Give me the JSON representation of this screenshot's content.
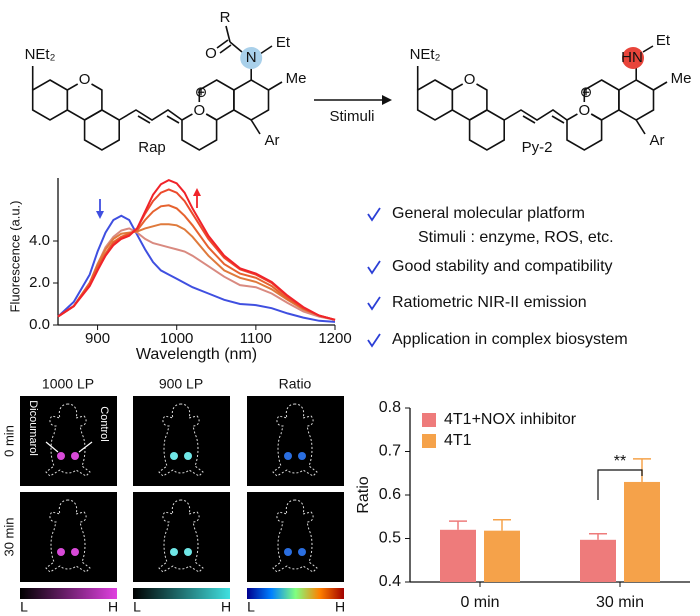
{
  "scheme": {
    "reagent": "Stimuli",
    "reactant": {
      "name": "Rap",
      "amine": "NEt₂",
      "ring_o": "O",
      "cation_o": "O",
      "charge": "⊕",
      "acyl": "R",
      "carbonyl_o": "O",
      "nitrogen": "N",
      "ethyl": "Et",
      "methyl": "Me",
      "aryl": "Ar"
    },
    "product": {
      "name": "Py-2",
      "amine": "NEt₂",
      "ring_o": "O",
      "cation_o": "O",
      "charge": "⊕",
      "nitrogen": "HN",
      "ethyl": "Et",
      "methyl": "Me",
      "aryl": "Ar"
    }
  },
  "features": [
    {
      "lines": [
        "General molecular platform",
        "Stimuli : enzyme, ROS, etc."
      ]
    },
    {
      "lines": [
        "Good stability and compatibility"
      ]
    },
    {
      "lines": [
        "Ratiometric NIR-II emission"
      ]
    },
    {
      "lines": [
        "Application in complex biosystem"
      ]
    }
  ],
  "imaging": {
    "columns": [
      "1000 LP",
      "900 LP",
      "Ratio"
    ],
    "rows": [
      "0 min",
      "30 min"
    ],
    "labels": [
      "Dicoumarol",
      "Control"
    ],
    "scale": {
      "low": "L",
      "high": "H"
    }
  },
  "chart_data": [
    {
      "type": "line",
      "x_label": "Wavelength (nm)",
      "y_label": "Fluorescence (a.u.)",
      "x": [
        850,
        870,
        890,
        900,
        910,
        920,
        930,
        940,
        950,
        960,
        970,
        980,
        990,
        1000,
        1010,
        1020,
        1040,
        1060,
        1080,
        1100,
        1120,
        1140,
        1160,
        1180,
        1200
      ],
      "xlim": [
        850,
        1200
      ],
      "xticks": [
        900,
        1000,
        1100,
        1200
      ],
      "ylim": [
        0,
        7
      ],
      "yticks": [
        {
          "value": 0,
          "label": "0.0"
        },
        {
          "value": 2,
          "label": "2.0"
        },
        {
          "value": 4,
          "label": "4.0"
        }
      ],
      "series": [
        {
          "color": "#3f4fe0",
          "values": [
            0.4,
            1.1,
            2.4,
            3.5,
            4.4,
            5.0,
            5.2,
            5.0,
            4.3,
            3.6,
            3.0,
            2.6,
            2.4,
            2.2,
            2.0,
            1.8,
            1.5,
            1.2,
            1.0,
            0.95,
            0.8,
            0.55,
            0.35,
            0.2,
            0.15
          ]
        },
        {
          "color": "#d98a80",
          "values": [
            0.4,
            0.9,
            2.0,
            2.9,
            3.7,
            4.2,
            4.5,
            4.6,
            4.4,
            4.1,
            3.9,
            3.8,
            3.7,
            3.6,
            3.5,
            3.3,
            2.8,
            2.3,
            1.9,
            1.8,
            1.5,
            1.05,
            0.65,
            0.4,
            0.25
          ]
        },
        {
          "color": "#df7a3c",
          "values": [
            0.4,
            0.9,
            2.0,
            2.9,
            3.6,
            4.1,
            4.35,
            4.4,
            4.45,
            4.6,
            4.7,
            4.8,
            4.8,
            4.75,
            4.55,
            4.2,
            3.3,
            2.6,
            2.25,
            2.05,
            1.7,
            1.2,
            0.75,
            0.45,
            0.25
          ]
        },
        {
          "color": "#e6622f",
          "values": [
            0.4,
            0.9,
            2.0,
            2.8,
            3.4,
            3.95,
            4.2,
            4.35,
            4.5,
            5.0,
            5.4,
            5.65,
            5.7,
            5.55,
            5.2,
            4.75,
            3.7,
            2.9,
            2.45,
            2.25,
            1.85,
            1.25,
            0.8,
            0.45,
            0.25
          ]
        },
        {
          "color": "#ec4a2c",
          "values": [
            0.4,
            0.9,
            1.9,
            2.65,
            3.3,
            3.85,
            4.15,
            4.3,
            4.6,
            5.3,
            5.9,
            6.3,
            6.45,
            6.3,
            5.9,
            5.3,
            4.1,
            3.2,
            2.65,
            2.4,
            2.0,
            1.35,
            0.8,
            0.45,
            0.25
          ]
        },
        {
          "color": "#f0232a",
          "values": [
            0.4,
            0.9,
            1.85,
            2.6,
            3.3,
            3.8,
            4.1,
            4.25,
            4.6,
            5.4,
            6.2,
            6.7,
            6.9,
            6.75,
            6.3,
            5.55,
            4.25,
            3.3,
            2.7,
            2.45,
            2.05,
            1.4,
            0.85,
            0.45,
            0.25
          ]
        }
      ]
    },
    {
      "type": "bar",
      "y_label": "Ratio",
      "categories": [
        "0 min",
        "30 min"
      ],
      "ylim": [
        0.4,
        0.8
      ],
      "yticks": [
        0.4,
        0.5,
        0.6,
        0.7,
        0.8
      ],
      "legend": "upper left",
      "annotation": "**",
      "series": [
        {
          "name": "4T1+NOX inhibitor",
          "color": "#ee7b7b",
          "values": [
            0.52,
            0.497
          ],
          "errors": [
            0.02,
            0.014
          ]
        },
        {
          "name": "4T1",
          "color": "#f5a24a",
          "values": [
            0.518,
            0.63
          ],
          "errors": [
            0.025,
            0.053
          ]
        }
      ]
    }
  ]
}
